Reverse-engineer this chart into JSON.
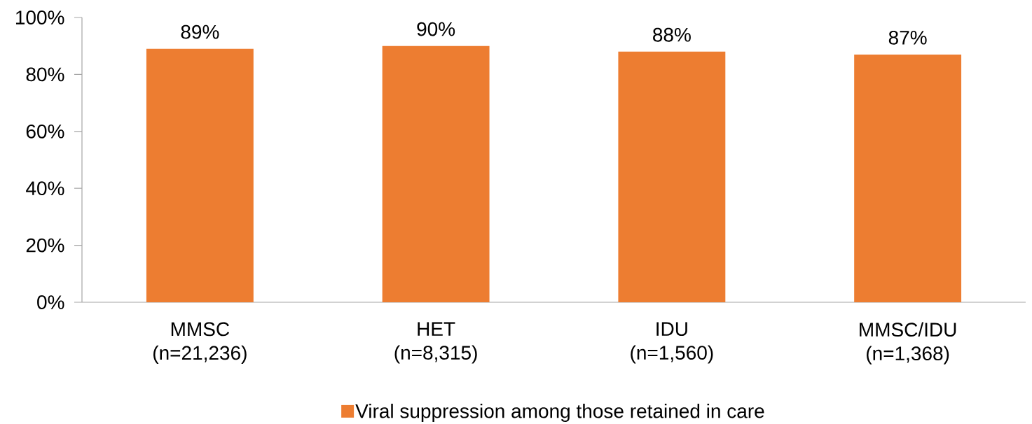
{
  "chart_data": {
    "type": "bar",
    "categories": [
      "MMSC (n=21,236)",
      "HET (n=8,315)",
      "IDU (n=1,560)",
      "MMSC/IDU (n=1,368)"
    ],
    "series": [
      {
        "name": "Viral suppression among those retained in care",
        "color": "#ed7d31",
        "values": [
          89,
          90,
          88,
          87
        ],
        "value_labels": [
          "89%",
          "90%",
          "88%",
          "87%"
        ]
      }
    ],
    "ylim": [
      0,
      100
    ],
    "yticks": [
      {
        "value": 0,
        "label": "0%"
      },
      {
        "value": 20,
        "label": "20%"
      },
      {
        "value": 40,
        "label": "40%"
      },
      {
        "value": 60,
        "label": "60%"
      },
      {
        "value": 80,
        "label": "80%"
      },
      {
        "value": 100,
        "label": "100%"
      }
    ],
    "legend": "bottom"
  }
}
